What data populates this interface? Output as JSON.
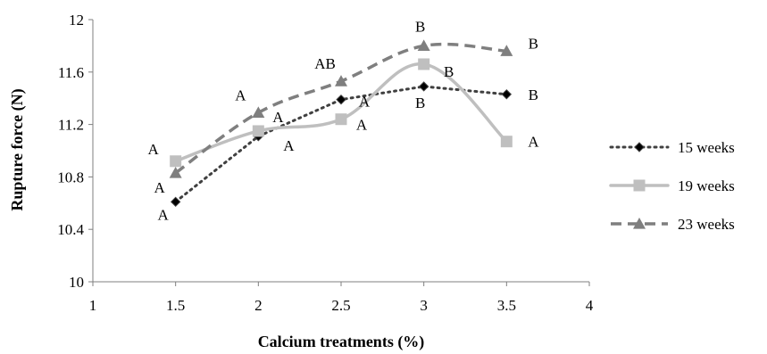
{
  "chart_data": {
    "type": "line",
    "xlabel": "Calcium treatments (%)",
    "ylabel": "Rupture force (N)",
    "xlim": [
      1,
      4
    ],
    "ylim": [
      10,
      12
    ],
    "xticks": [
      "1",
      "1.5",
      "2",
      "2.5",
      "3",
      "3.5",
      "4"
    ],
    "yticks": [
      "10",
      "10.4",
      "10.8",
      "11.2",
      "11.6",
      "12"
    ],
    "grid": false,
    "legend_position": "right",
    "x": [
      1.5,
      2,
      2.5,
      3,
      3.5
    ],
    "series": [
      {
        "name": "15 weeks",
        "values": [
          10.61,
          11.11,
          11.39,
          11.49,
          11.43
        ],
        "labels": [
          "A",
          "A",
          "A",
          "B",
          "B"
        ],
        "style": "dotted",
        "marker": "diamond",
        "color": "#404040",
        "marker_color": "#000000"
      },
      {
        "name": "19 weeks",
        "values": [
          10.92,
          11.15,
          11.24,
          11.66,
          11.07
        ],
        "labels": [
          "A",
          "A",
          "A",
          "B",
          "A"
        ],
        "style": "solid-smooth",
        "marker": "square",
        "color": "#bfbfbf",
        "marker_color": "#bfbfbf"
      },
      {
        "name": "23 weeks",
        "values": [
          10.83,
          11.29,
          11.53,
          11.8,
          11.76
        ],
        "labels": [
          "A",
          "A",
          "AB",
          "B",
          "B"
        ],
        "style": "dashed-smooth",
        "marker": "triangle",
        "color": "#7f7f7f",
        "marker_color": "#7f7f7f"
      }
    ]
  }
}
